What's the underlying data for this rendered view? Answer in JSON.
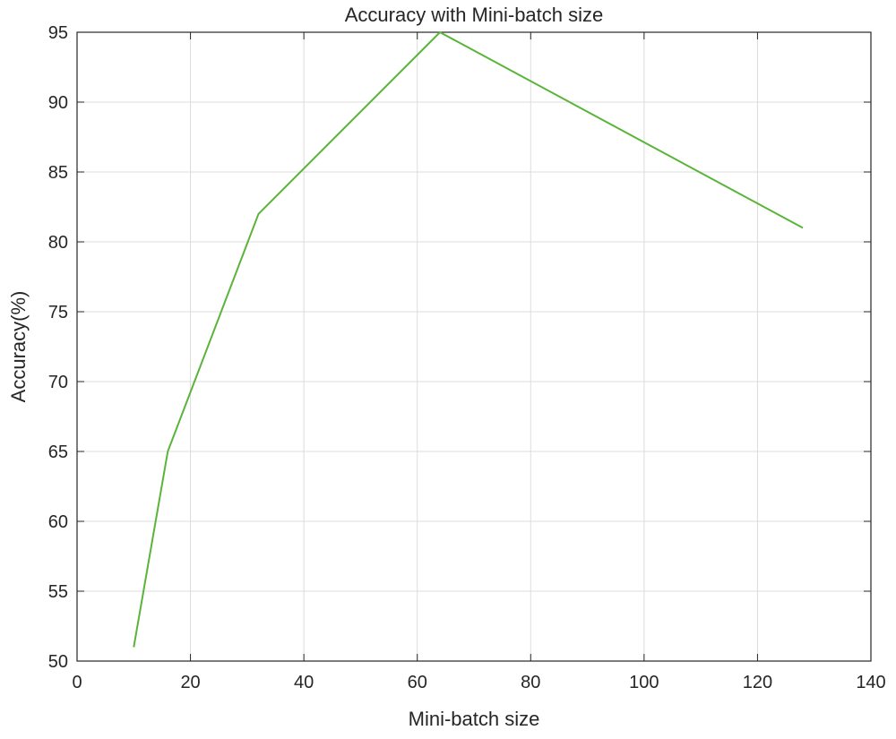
{
  "chart_data": {
    "type": "line",
    "title": "Accuracy with Mini-batch size",
    "xlabel": "Mini-batch size",
    "ylabel": "Accuracy(%)",
    "xlim": [
      0,
      140
    ],
    "ylim": [
      50,
      95
    ],
    "xticks": [
      0,
      20,
      40,
      60,
      80,
      100,
      120,
      140
    ],
    "yticks": [
      50,
      55,
      60,
      65,
      70,
      75,
      80,
      85,
      90,
      95
    ],
    "grid": true,
    "series": [
      {
        "color": "#5ab43a",
        "x": [
          10,
          16,
          32,
          64,
          128
        ],
        "y": [
          51,
          65,
          82,
          95,
          81
        ]
      }
    ]
  }
}
